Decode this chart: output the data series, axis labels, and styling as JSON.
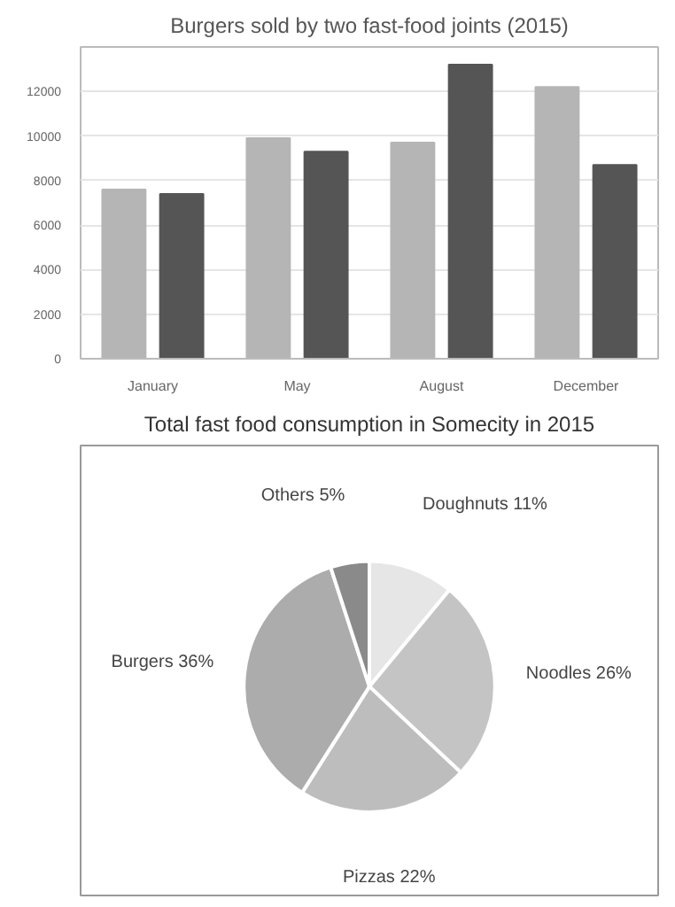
{
  "chart_data": [
    {
      "type": "bar",
      "title": "Burgers sold by two fast-food joints (2015)",
      "categories": [
        "January",
        "May",
        "August",
        "December"
      ],
      "series": [
        {
          "color": "#b5b5b5",
          "values": [
            7600,
            9900,
            9700,
            12200
          ]
        },
        {
          "color": "#555555",
          "values": [
            7400,
            9300,
            13200,
            8700
          ]
        }
      ],
      "ylim": [
        0,
        14000
      ],
      "yticks": [
        0,
        2000,
        4000,
        6000,
        8000,
        10000,
        12000
      ],
      "grid": "y"
    },
    {
      "type": "pie",
      "title": "Total fast food consumption in Somecity in 2015",
      "categories": [
        "Doughnuts",
        "Noodles",
        "Pizzas",
        "Burgers",
        "Others"
      ],
      "values": [
        11,
        26,
        22,
        36,
        5
      ],
      "value_labels": [
        "11%",
        "26%",
        "22%",
        "36%",
        "5%"
      ],
      "colors": [
        "#e6e6e6",
        "#c4c4c4",
        "#bdbdbd",
        "#acacac",
        "#8a8a8a"
      ]
    }
  ]
}
